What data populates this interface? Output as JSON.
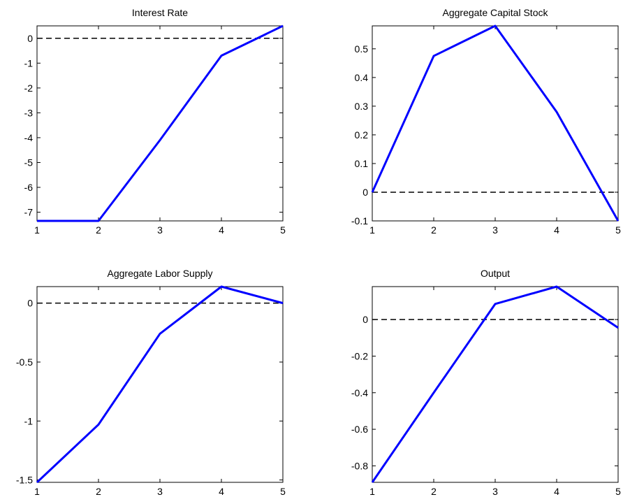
{
  "chart_data": [
    {
      "type": "line",
      "title": "Interest Rate",
      "x": [
        1,
        2,
        3,
        4,
        5
      ],
      "series": [
        {
          "color": "#0000ff",
          "values": [
            -7.35,
            -7.35,
            -4.1,
            -0.7,
            0.5
          ]
        }
      ],
      "xlim": [
        1,
        5
      ],
      "xticks": [
        1,
        2,
        3,
        4,
        5
      ],
      "ylim": [
        -7.35,
        0.5
      ],
      "yticks": [
        -7,
        -6,
        -5,
        -4,
        -3,
        -2,
        -1,
        0
      ],
      "reference_line": 0
    },
    {
      "type": "line",
      "title": "Aggregate Capital Stock",
      "x": [
        1,
        2,
        3,
        4,
        5
      ],
      "series": [
        {
          "color": "#0000ff",
          "values": [
            0,
            0.475,
            0.58,
            0.28,
            -0.1
          ]
        }
      ],
      "xlim": [
        1,
        5
      ],
      "xticks": [
        1,
        2,
        3,
        4,
        5
      ],
      "ylim": [
        -0.1,
        0.58
      ],
      "yticks": [
        -0.1,
        0,
        0.1,
        0.2,
        0.3,
        0.4,
        0.5
      ],
      "reference_line": 0
    },
    {
      "type": "line",
      "title": "Aggregate Labor Supply",
      "x": [
        1,
        2,
        3,
        4,
        5
      ],
      "series": [
        {
          "color": "#0000ff",
          "values": [
            -1.52,
            -1.03,
            -0.26,
            0.14,
            0
          ]
        }
      ],
      "xlim": [
        1,
        5
      ],
      "xticks": [
        1,
        2,
        3,
        4,
        5
      ],
      "ylim": [
        -1.52,
        0.14
      ],
      "yticks": [
        -1.5,
        -1,
        -0.5,
        0
      ],
      "reference_line": 0
    },
    {
      "type": "line",
      "title": "Output",
      "x": [
        1,
        2,
        3,
        4,
        5
      ],
      "series": [
        {
          "color": "#0000ff",
          "values": [
            -0.89,
            -0.4,
            0.085,
            0.18,
            -0.045
          ]
        }
      ],
      "xlim": [
        1,
        5
      ],
      "xticks": [
        1,
        2,
        3,
        4,
        5
      ],
      "ylim": [
        -0.89,
        0.18
      ],
      "yticks": [
        -0.8,
        -0.6,
        -0.4,
        -0.2,
        0
      ],
      "reference_line": 0
    }
  ]
}
